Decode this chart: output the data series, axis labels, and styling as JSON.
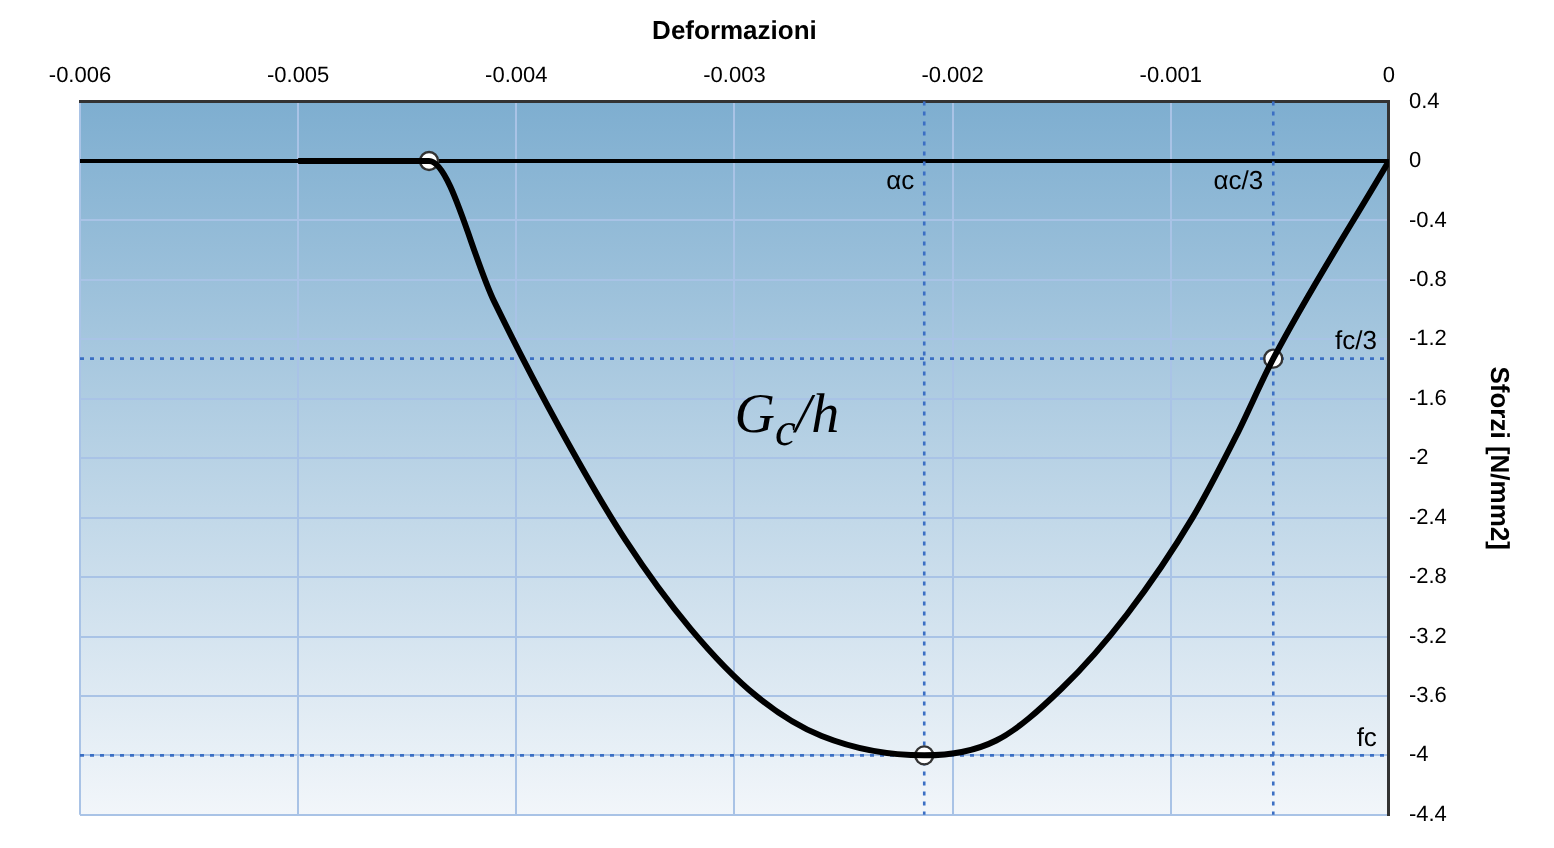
{
  "chart_data": {
    "type": "line",
    "xlabel": "Deformazioni",
    "ylabel": "Sforzi [N/mm2]",
    "xlim": [
      -0.006,
      0
    ],
    "xticks": [
      -0.006,
      -0.005,
      -0.004,
      -0.003,
      -0.002,
      -0.001,
      0
    ],
    "ylim": [
      -4.4,
      0.4
    ],
    "yticks": [
      0.4,
      0,
      -0.4,
      -0.8,
      -1.2,
      -1.6,
      -2,
      -2.4,
      -2.8,
      -3.2,
      -3.6,
      -4,
      -4.4
    ],
    "grid": true,
    "legend": false,
    "line_style": "solid",
    "series": [
      {
        "type": "line",
        "color": "#000000",
        "marker": "none",
        "x": [
          -0.005,
          -0.0044,
          -0.0041,
          -0.0038,
          -0.0035,
          -0.0032,
          -0.0029,
          -0.0026,
          -0.00213,
          -0.0018,
          -0.0015,
          -0.0012,
          -0.0009,
          -0.0007,
          -0.00053,
          0
        ],
        "values": [
          0,
          0,
          -0.95,
          -1.8,
          -2.55,
          -3.15,
          -3.6,
          -3.87,
          -4,
          -3.9,
          -3.55,
          -3.05,
          -2.4,
          -1.85,
          -1.33,
          0
        ]
      },
      {
        "type": "scatter",
        "color": "#ffffff",
        "marker": "circle",
        "x": [
          -0.0044,
          -0.00213,
          -0.00053
        ],
        "values": [
          0,
          -4,
          -1.33
        ]
      }
    ],
    "ref_lines": [
      {
        "axis": "y",
        "value": 0,
        "color": "#000000",
        "line_style": "solid"
      },
      {
        "axis": "x",
        "value": -0.00213,
        "label": "αc",
        "color": "#3b6fc4",
        "line_style": "dotted"
      },
      {
        "axis": "x",
        "value": -0.00053,
        "label": "αc/3",
        "color": "#3b6fc4",
        "line_style": "dotted"
      },
      {
        "axis": "y",
        "value": -4,
        "label": "fc",
        "color": "#3b6fc4",
        "line_style": "dotted"
      },
      {
        "axis": "y",
        "value": -1.33,
        "label": "fc/3",
        "color": "#3b6fc4",
        "line_style": "dotted"
      }
    ],
    "annotations": [
      "G$_{c}$/h"
    ]
  }
}
